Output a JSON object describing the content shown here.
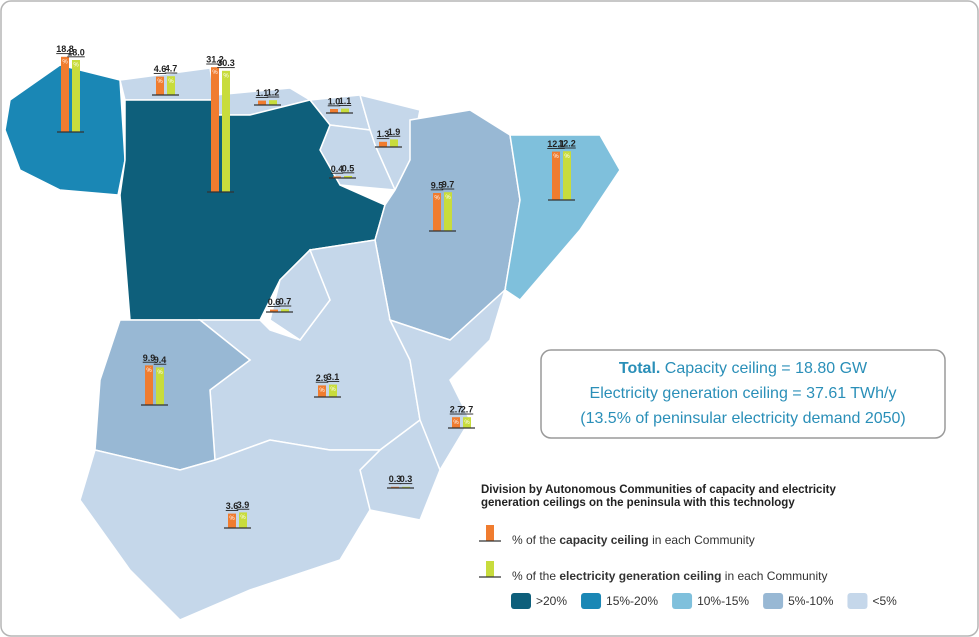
{
  "bar_unit": "%",
  "colors": {
    "capacity": "#f07c2f",
    "generation": "#c8dc3c",
    "baseline": "#333333"
  },
  "communities": {
    "capacity": {
      "values": [
        18.8,
        4.6,
        31.2,
        1.1,
        1.0,
        1.3,
        0.4,
        9.5,
        12.1,
        0.6,
        9.9,
        2.9,
        2.7,
        0.3,
        3.6
      ],
      "value_labels": [
        "18.8",
        "4.6",
        "31.2",
        "1.1",
        "1.0",
        "1.3",
        "0.4",
        "9.5",
        "12.1",
        "0.6",
        "9.9",
        "2.9",
        "2.7",
        "0.3",
        "3.6"
      ]
    },
    "generation": {
      "values": [
        18.0,
        4.7,
        30.3,
        1.2,
        1.1,
        1.9,
        0.5,
        9.7,
        12.2,
        0.7,
        9.4,
        3.1,
        2.7,
        0.3,
        3.9
      ],
      "value_labels": [
        "18.0",
        "4.7",
        "30.3",
        "1.2",
        "1.1",
        "1.9",
        "0.5",
        "9.7",
        "12.2",
        "0.7",
        "9.4",
        "3.1",
        "2.7",
        "0.3",
        "3.9"
      ]
    }
  },
  "total": {
    "title": "Total.",
    "capacity": "Capacity ceiling = 18.80 GW",
    "generation": "Electricity generation ceiling = 37.61 TWh/y",
    "demand": "(13.5% of peninsular electricity demand 2050)"
  },
  "legend": {
    "title_lines": [
      "Division by Autonomous Communities of capacity and electricity",
      "generation ceilings on the peninsula with this technology"
    ],
    "capacity": [
      "% of the ",
      "capacity ceiling",
      " in each Community"
    ],
    "generation": [
      "% of the ",
      "electricity generation ceiling",
      " in each Community"
    ],
    "tiers": [
      {
        "label": ">20%",
        "color": "#0e5f7b"
      },
      {
        "label": "15%-20%",
        "color": "#1a87b5"
      },
      {
        "label": "10%-15%",
        "color": "#7fc0dc"
      },
      {
        "label": "5%-10%",
        "color": "#98b8d4"
      },
      {
        "label": "<5%",
        "color": "#c5d7ea"
      }
    ]
  }
}
